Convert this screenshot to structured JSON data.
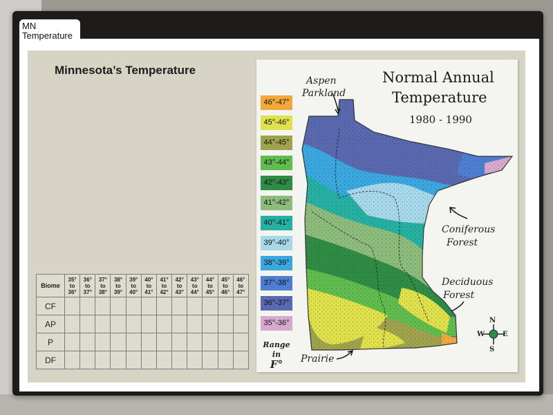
{
  "tab": {
    "line1": "MN",
    "line2": "Temperature"
  },
  "page_title": "Minnesota’s Temperature",
  "map": {
    "title_line1": "Normal Annual",
    "title_line2": "Temperature",
    "years": "1980 - 1990",
    "labels": {
      "aspen_1": "Aspen",
      "aspen_2": "Parkland",
      "coniferous_1": "Coniferous",
      "coniferous_2": "Forest",
      "deciduous_1": "Deciduous",
      "deciduous_2": "Forest",
      "prairie": "Prairie"
    },
    "compass": {
      "n": "N",
      "s": "S",
      "e": "E",
      "w": "W"
    },
    "legend_range_line1": "Range in",
    "legend_range_line2": "F°",
    "legend": [
      {
        "label": "46°-47°",
        "color": "#f2a93a"
      },
      {
        "label": "45°-46°",
        "color": "#dfe04a"
      },
      {
        "label": "44°-45°",
        "color": "#9fa34e"
      },
      {
        "label": "43°-44°",
        "color": "#5fbc4d"
      },
      {
        "label": "42°-43°",
        "color": "#2f8c45"
      },
      {
        "label": "41°-42°",
        "color": "#8dbb7c"
      },
      {
        "label": "40°-41°",
        "color": "#25b0a2"
      },
      {
        "label": "39°-40°",
        "color": "#a7d8ea"
      },
      {
        "label": "38°-39°",
        "color": "#3aa8df"
      },
      {
        "label": "37°-38°",
        "color": "#4d7ed2"
      },
      {
        "label": "36°-37°",
        "color": "#5869b0"
      },
      {
        "label": "35°-36°",
        "color": "#d8a9cf"
      }
    ]
  },
  "table": {
    "corner": "Biome",
    "columns": [
      {
        "a": "35°",
        "b": "to",
        "c": "36°"
      },
      {
        "a": "36°",
        "b": "to",
        "c": "37°"
      },
      {
        "a": "37°",
        "b": "to",
        "c": "38°"
      },
      {
        "a": "38°",
        "b": "to",
        "c": "39°"
      },
      {
        "a": "39°",
        "b": "to",
        "c": "40°"
      },
      {
        "a": "40°",
        "b": "to",
        "c": "41°"
      },
      {
        "a": "41°",
        "b": "to",
        "c": "42°"
      },
      {
        "a": "42°",
        "b": "to",
        "c": "43°"
      },
      {
        "a": "43°",
        "b": "to",
        "c": "44°"
      },
      {
        "a": "44°",
        "b": "to",
        "c": "45°"
      },
      {
        "a": "45°",
        "b": "to",
        "c": "46°"
      },
      {
        "a": "46°",
        "b": "to",
        "c": "47°"
      }
    ],
    "rows": [
      "CF",
      "AP",
      "P",
      "DF"
    ]
  }
}
